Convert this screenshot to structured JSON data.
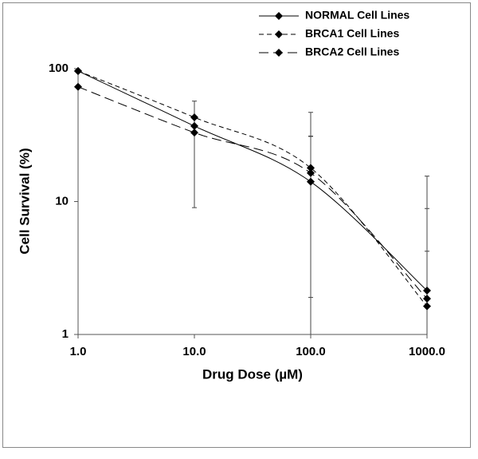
{
  "chart_data": {
    "type": "line",
    "x_label": "Drug Dose (µM)",
    "y_label": "Cell Survival (%)",
    "x": [
      1,
      10,
      100,
      1000
    ],
    "series": [
      {
        "name": "NORMAL Cell Lines",
        "color": "#000000",
        "dash": "solid",
        "values": [
          96,
          37,
          14.1,
          2.14
        ],
        "errors": [
          null,
          null,
          17,
          13.4
        ]
      },
      {
        "name": "BRCA1 Cell Lines",
        "color": "#000000",
        "dash": "short",
        "values": [
          96,
          43,
          17.9,
          1.63
        ],
        "errors": [
          null,
          null,
          29,
          2.6
        ]
      },
      {
        "name": "BRCA2 Cell Lines",
        "color": "#000000",
        "dash": "long",
        "values": [
          73,
          33,
          16.4,
          1.86
        ],
        "errors": [
          null,
          24,
          14.5,
          7
        ]
      }
    ],
    "log_x": true,
    "log_y": true,
    "xlim": [
      1,
      1000
    ],
    "ylim": [
      1,
      100
    ],
    "xticks": [
      {
        "value": 1,
        "label": "1.0"
      },
      {
        "value": 10,
        "label": "10.0"
      },
      {
        "value": 100,
        "label": "100.0"
      },
      {
        "value": 1000,
        "label": "1000.0"
      }
    ],
    "yticks": [
      1,
      10,
      100
    ],
    "grid": false,
    "legend": "top-right"
  }
}
